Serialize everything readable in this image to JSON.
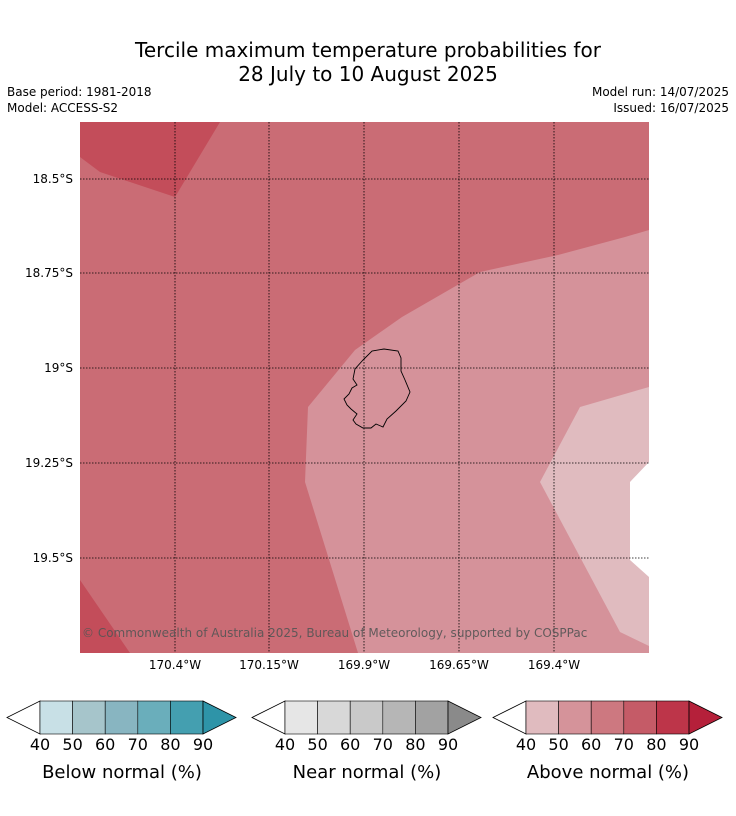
{
  "title": {
    "line1": "Tercile maximum temperature probabilities for",
    "line2": "28 July to 10 August 2025"
  },
  "meta": {
    "base_period": "Base period: 1981-2018",
    "model": "Model: ACCESS-S2",
    "model_run": "Model run: 14/07/2025",
    "issued": "Issued: 16/07/2025"
  },
  "map": {
    "lat_labels": [
      "18.5°S",
      "18.75°S",
      "19°S",
      "19.25°S",
      "19.5°S"
    ],
    "lon_labels": [
      "170.4°W",
      "170.15°W",
      "169.9°W",
      "169.65°W",
      "169.4°W"
    ],
    "copyright": "© Commonwealth of Australia 2025, Bureau of Meteorology, supported by COSPPac",
    "fill_colors": {
      "above_50": "#d5929a",
      "above_40": "#e0bbbf",
      "above_60": "#ca6c75",
      "above_70": "#c34d5a",
      "no_signal": "#ffffff"
    }
  },
  "colorbars": [
    {
      "label": "Below normal (%)",
      "ticks": [
        "40",
        "50",
        "60",
        "70",
        "80",
        "90"
      ],
      "colors": [
        "#ffffff",
        "#c8e0e6",
        "#a6c5cb",
        "#88b5c1",
        "#6aaebb",
        "#449fb0",
        "#2e94a8"
      ]
    },
    {
      "label": "Near normal (%)",
      "ticks": [
        "40",
        "50",
        "60",
        "70",
        "80",
        "90"
      ],
      "colors": [
        "#ffffff",
        "#e6e6e6",
        "#d8d8d8",
        "#c9c9c9",
        "#b6b6b6",
        "#a2a2a2",
        "#8a8a8a"
      ]
    },
    {
      "label": "Above normal (%)",
      "ticks": [
        "40",
        "50",
        "60",
        "70",
        "80",
        "90"
      ],
      "colors": [
        "#ffffff",
        "#e0bbbf",
        "#d5939a",
        "#cd7880",
        "#c55b67",
        "#bd3549",
        "#b5203a"
      ]
    }
  ]
}
